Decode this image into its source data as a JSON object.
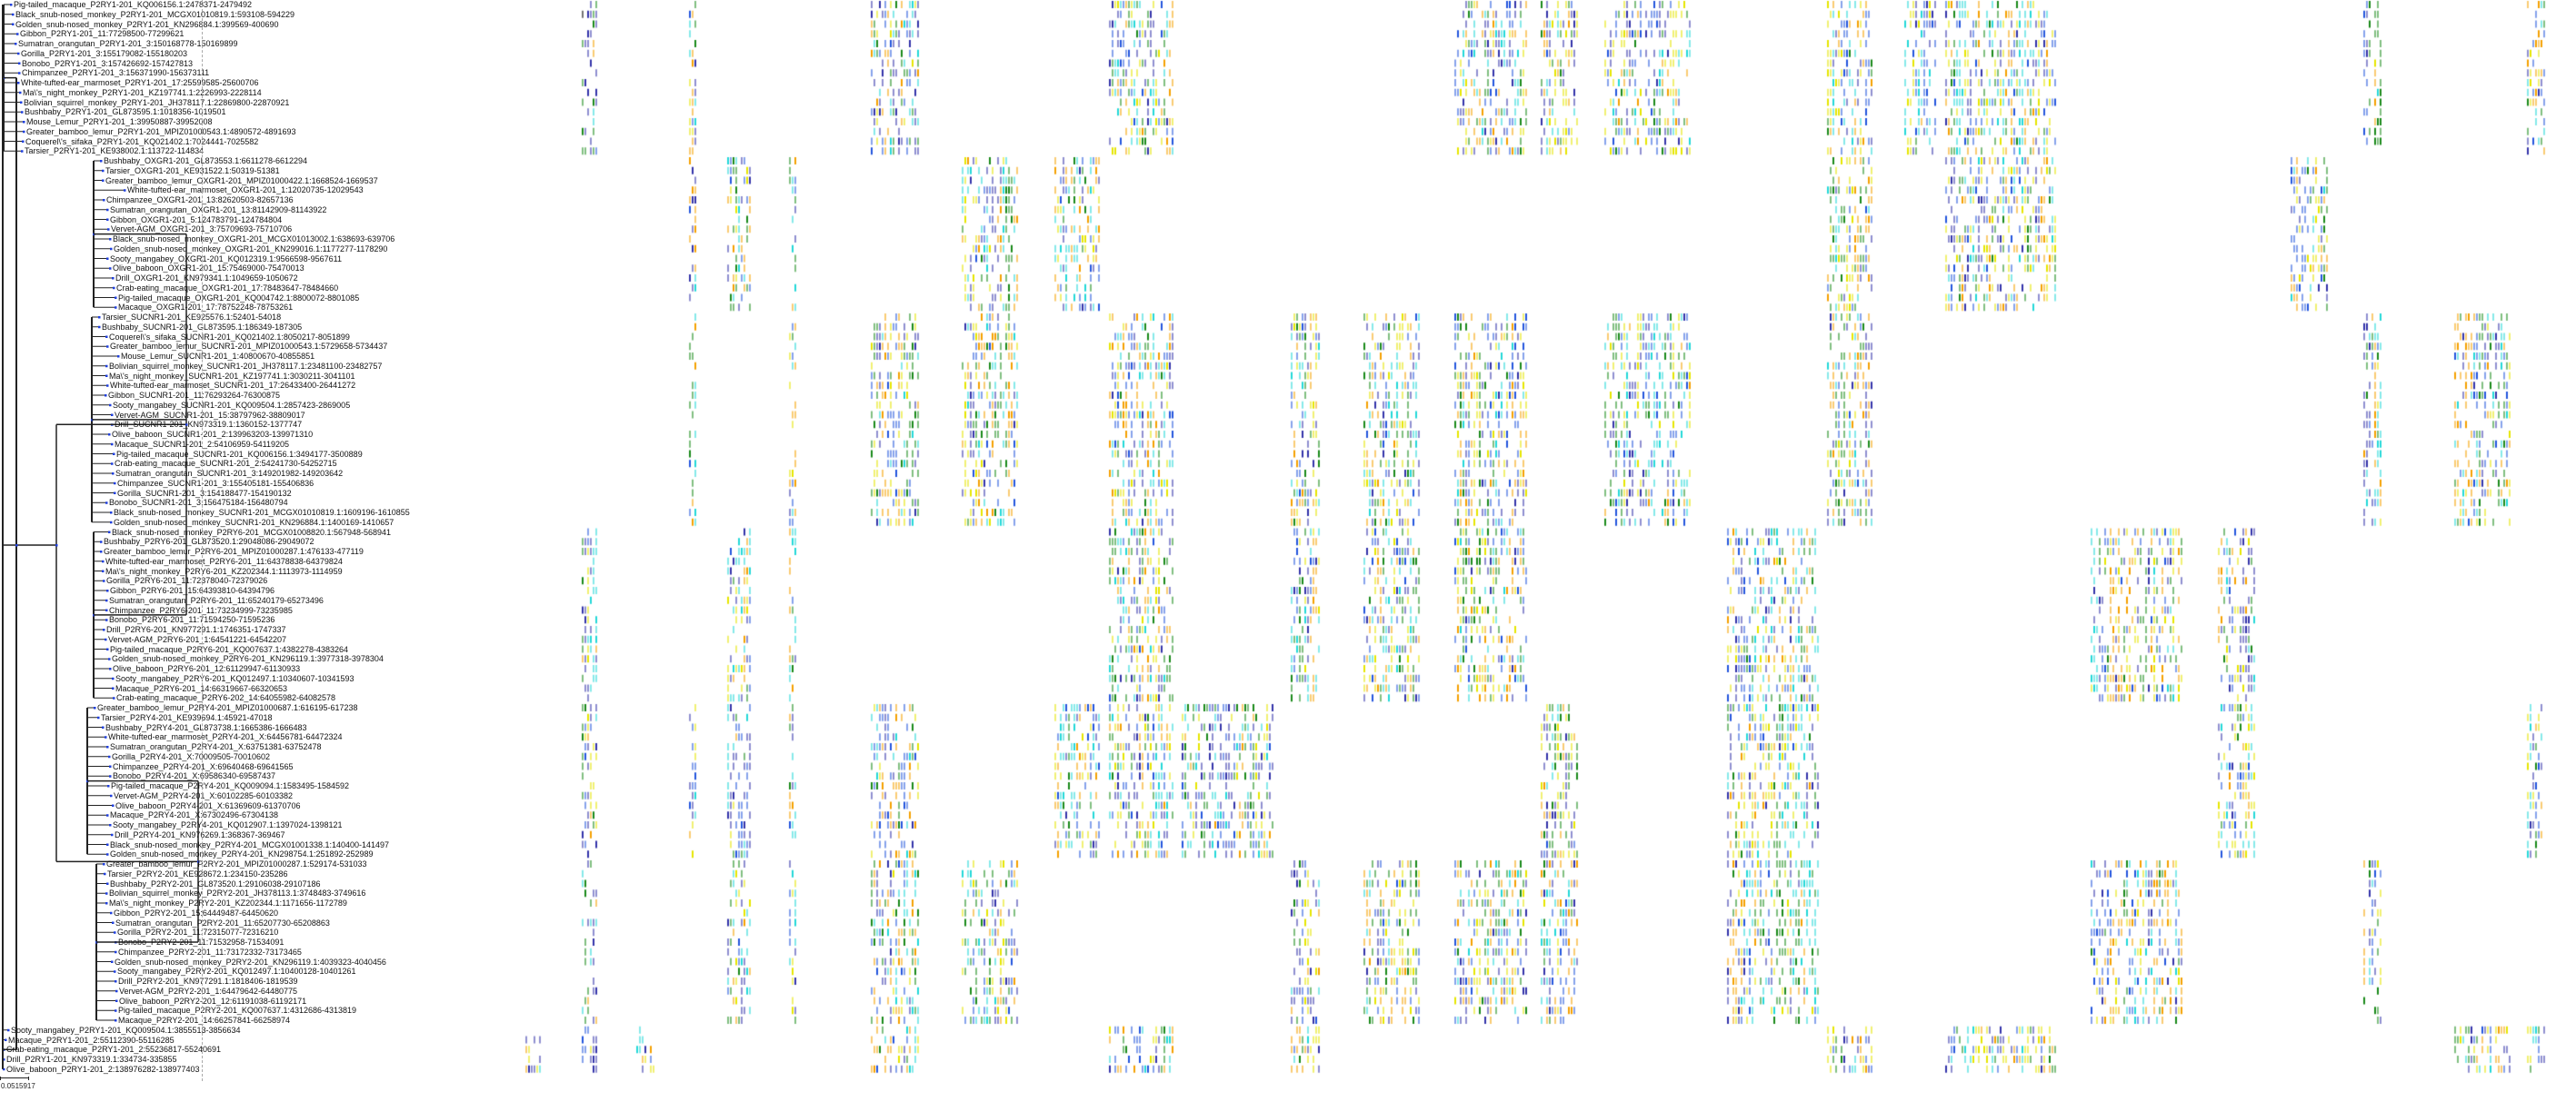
{
  "tree": {
    "leaves": [
      "Pig-tailed_macaque_P2RY1-201_KQ006156.1:2478371-2479492",
      "Black_snub-nosed_monkey_P2RY1-201_MCGX01010819.1:593108-594229",
      "Golden_snub-nosed_monkey_P2RY1-201_KN296884.1:399569-400690",
      "Gibbon_P2RY1-201_11:77298500-77299621",
      "Sumatran_orangutan_P2RY1-201_3:150168778-150169899",
      "Gorilla_P2RY1-201_3:155179082-155180203",
      "Bonobo_P2RY1-201_3:157426692-157427813",
      "Chimpanzee_P2RY1-201_3:156371990-156373111",
      "White-tufted-ear_marmoset_P2RY1-201_17:25599585-25600706",
      "Ma\\'s_night_monkey_P2RY1-201_KZ197741.1:2226993-2228114",
      "Bolivian_squirrel_monkey_P2RY1-201_JH378117.1:22869800-22870921",
      "Bushbaby_P2RY1-201_GL873595.1:1018356-1019501",
      "Mouse_Lemur_P2RY1-201_1:39950887-39952008",
      "Greater_bamboo_lemur_P2RY1-201_MPIZ01000543.1:4890572-4891693",
      "Coquerel\\'s_sifaka_P2RY1-201_KQ021402.1:7024441-7025582",
      "Tarsier_P2RY1-201_KE938002.1:113722-114834",
      "Bushbaby_OXGR1-201_GL873553.1:6611278-6612294",
      "Tarsier_OXGR1-201_KE931522.1:50319-51381",
      "Greater_bamboo_lemur_OXGR1-201_MPIZ01000422.1:1668524-1669537",
      "White-tufted-ear_marmoset_OXGR1-201_1:12020735-12029543",
      "Chimpanzee_OXGR1-201_13:82620503-82657136",
      "Sumatran_orangutan_OXGR1-201_13:81142909-81143922",
      "Gibbon_OXGR1-201_5:124783791-124784804",
      "Vervet-AGM_OXGR1-201_3:75709693-75710706",
      "Black_snub-nosed_monkey_OXGR1-201_MCGX01013002.1:638693-639706",
      "Golden_snub-nosed_monkey_OXGR1-201_KN299016.1:1177277-1178290",
      "Sooty_mangabey_OXGR1-201_KQ012319.1:9566598-9567611",
      "Olive_baboon_OXGR1-201_15:75469000-75470013",
      "Drill_OXGR1-201_KN979341.1:1049659-1050672",
      "Crab-eating_macaque_OXGR1-201_17:78483647-78484660",
      "Pig-tailed_macaque_OXGR1-201_KQ004742.1:8800072-8801085",
      "Macaque_OXGR1-201_17:78752248-78753261",
      "Tarsier_SUCNR1-201_KE925576.1:52401-54018",
      "Bushbaby_SUCNR1-201_GL873595.1:186349-187305",
      "Coquerel\\'s_sifaka_SUCNR1-201_KQ021402.1:8050217-8051899",
      "Greater_bamboo_lemur_SUCNR1-201_MPIZ01000543.1:5729658-5734437",
      "Mouse_Lemur_SUCNR1-201_1:40800670-40855851",
      "Bolivian_squirrel_monkey_SUCNR1-201_JH378117.1:23481100-23482757",
      "Ma\\'s_night_monkey_SUCNR1-201_KZ197741.1:3030211-3041101",
      "White-tufted-ear_marmoset_SUCNR1-201_17:26433400-26441272",
      "Gibbon_SUCNR1-201_11:76293264-76300875",
      "Sooty_mangabey_SUCNR1-201_KQ009504.1:2857423-2869005",
      "Vervet-AGM_SUCNR1-201_15:38797962-38809017",
      "Drill_SUCNR1-201_KN973319.1:1360152-1377747",
      "Olive_baboon_SUCNR1-201_2:139963203-139971310",
      "Macaque_SUCNR1-201_2:54106959-54119205",
      "Pig-tailed_macaque_SUCNR1-201_KQ006156.1:3494177-3500889",
      "Crab-eating_macaque_SUCNR1-201_2:54241730-54252715",
      "Sumatran_orangutan_SUCNR1-201_3:149201982-149203642",
      "Chimpanzee_SUCNR1-201_3:155405181-155406836",
      "Gorilla_SUCNR1-201_3:154188477-154190132",
      "Bonobo_SUCNR1-201_3:156475184-156480794",
      "Black_snub-nosed_monkey_SUCNR1-201_MCGX01010819.1:1609196-1610855",
      "Golden_snub-nosed_monkey_SUCNR1-201_KN296884.1:1400169-1410657",
      "Black_snub-nosed_monkey_P2RY6-201_MCGX01008820.1:567948-568941",
      "Bushbaby_P2RY6-201_GL873520.1:29048086-29049072",
      "Greater_bamboo_lemur_P2RY6-201_MPIZ01000287.1:476133-477119",
      "White-tufted-ear_marmoset_P2RY6-201_11:64378838-64379824",
      "Ma\\'s_night_monkey_P2RY6-201_KZ202344.1:1113973-1114959",
      "Gorilla_P2RY6-201_11:72378040-72379026",
      "Gibbon_P2RY6-201_15:64393810-64394796",
      "Sumatran_orangutan_P2RY6-201_11:65240179-65273496",
      "Chimpanzee_P2RY6-201_11:73234999-73235985",
      "Bonobo_P2RY6-201_11:71594250-71595236",
      "Drill_P2RY6-201_KN977291.1:1746351-1747337",
      "Vervet-AGM_P2RY6-201_1:64541221-64542207",
      "Pig-tailed_macaque_P2RY6-201_KQ007637.1:4382278-4383264",
      "Golden_snub-nosed_monkey_P2RY6-201_KN296119.1:3977318-3978304",
      "Olive_baboon_P2RY6-201_12:61129947-61130933",
      "Sooty_mangabey_P2RY6-201_KQ012497.1:10340607-10341593",
      "Macaque_P2RY6-201_14:66319667-66320653",
      "Crab-eating_macaque_P2RY6-202_14:64055982-64082578",
      "Greater_bamboo_lemur_P2RY4-201_MPIZ01000687.1:616195-617238",
      "Tarsier_P2RY4-201_KE939694.1:45921-47018",
      "Bushbaby_P2RY4-201_GL873738.1:1665386-1666483",
      "White-tufted-ear_marmoset_P2RY4-201_X:64456781-64472324",
      "Sumatran_orangutan_P2RY4-201_X:63751381-63752478",
      "Gorilla_P2RY4-201_X:70009505-70010602",
      "Chimpanzee_P2RY4-201_X:69640468-69641565",
      "Bonobo_P2RY4-201_X:69586340-69587437",
      "Pig-tailed_macaque_P2RY4-201_KQ009094.1:1583495-1584592",
      "Vervet-AGM_P2RY4-201_X:60102285-60103382",
      "Olive_baboon_P2RY4-201_X:61369609-61370706",
      "Macaque_P2RY4-201_X:67302496-67304138",
      "Sooty_mangabey_P2RY4-201_KQ012907.1:1397024-1398121",
      "Drill_P2RY4-201_KN976269.1:368367-369467",
      "Black_snub-nosed_monkey_P2RY4-201_MCGX01001338.1:140400-141497",
      "Golden_snub-nosed_monkey_P2RY4-201_KN298754.1:251892-252989",
      "Greater_bamboo_lemur_P2RY2-201_MPIZ01000287.1:529174-531033",
      "Tarsier_P2RY2-201_KE928672.1:234150-235286",
      "Bushbaby_P2RY2-201_GL873520.1:29106038-29107186",
      "Bolivian_squirrel_monkey_P2RY2-201_JH378113.1:3748483-3749616",
      "Ma\\'s_night_monkey_P2RY2-201_KZ202344.1:1171656-1172789",
      "Gibbon_P2RY2-201_15:64449487-64450620",
      "Sumatran_orangutan_P2RY2-201_11:65207730-65208863",
      "Gorilla_P2RY2-201_11:72315077-72316210",
      "Bonobo_P2RY2-201_11:71532958-71534091",
      "Chimpanzee_P2RY2-201_11:73172332-73173465",
      "Golden_snub-nosed_monkey_P2RY2-201_KN296119.1:4039323-4040456",
      "Sooty_mangabey_P2RY2-201_KQ012497.1:10400128-10401261",
      "Drill_P2RY2-201_KN977291.1:1818406-1819539",
      "Vervet-AGM_P2RY2-201_1:64479642-64480775",
      "Olive_baboon_P2RY2-201_12:61191038-61192171",
      "Pig-tailed_macaque_P2RY2-201_KQ007637.1:4312686-4313819",
      "Macaque_P2RY2-201_14:66257841-66258974",
      "Sooty_mangabey_P2RY1-201_KQ009504.1:3855513-3856634",
      "Macaque_P2RY1-201_2:55112390-55116285",
      "Crab-eating_macaque_P2RY1-201_2:55236817-55240691",
      "Drill_P2RY1-201_KN973319.1:334734-335855",
      "Olive_baboon_P2RY1-201_2:138976282-138977403"
    ],
    "scale_label": "0.0515917",
    "branch_color": "#222222",
    "node_color": "#1f3fdd"
  },
  "alignment": {
    "palette": [
      "#1a8a1a",
      "#f5a000",
      "#2255dd",
      "#3333aa",
      "#22d8d8",
      "#e6e600",
      "#dd2222",
      "#aaaaaa",
      "#9a9aee",
      "#55aa55",
      "#f0b0b0",
      "#444488"
    ]
  }
}
